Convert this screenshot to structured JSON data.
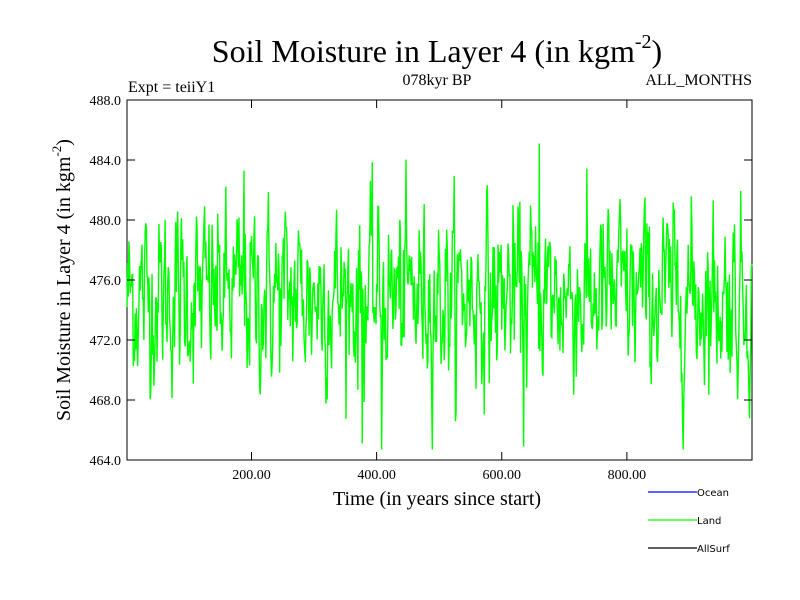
{
  "chart_data": {
    "type": "line",
    "title": "Soil Moisture in Layer 4 (in kgm",
    "title_sup": "-2",
    "title_end": ")",
    "subtitle_left": "Expt = teiiY1",
    "subtitle_center": "078kyr BP",
    "subtitle_right": "ALL_MONTHS",
    "xlabel": "Time (in years since start)",
    "ylabel": "Soil Moisture in Layer 4 (in kgm",
    "ylabel_sup": "-2",
    "ylabel_end": ")",
    "xlim": [
      1,
      1000
    ],
    "ylim": [
      464.0,
      488.0
    ],
    "xticks": [
      200,
      400,
      600,
      800
    ],
    "xtick_labels": [
      "200.00",
      "400.00",
      "600.00",
      "800.00"
    ],
    "yticks": [
      464,
      468,
      472,
      476,
      480,
      484,
      488
    ],
    "ytick_labels": [
      "464.0",
      "468.0",
      "472.0",
      "476.0",
      "480.0",
      "484.0",
      "488.0"
    ],
    "series": [
      {
        "name": "Ocean",
        "color": "#0000ff",
        "values": []
      },
      {
        "name": "Land",
        "color": "#00ff00",
        "summary": {
          "mean": 475.0,
          "min": 464.7,
          "max": 485.1,
          "n_years": 1000
        }
      },
      {
        "name": "AllSurf",
        "color": "#000000",
        "values": []
      }
    ],
    "legend_placement": "bottom-right",
    "grid": false
  }
}
